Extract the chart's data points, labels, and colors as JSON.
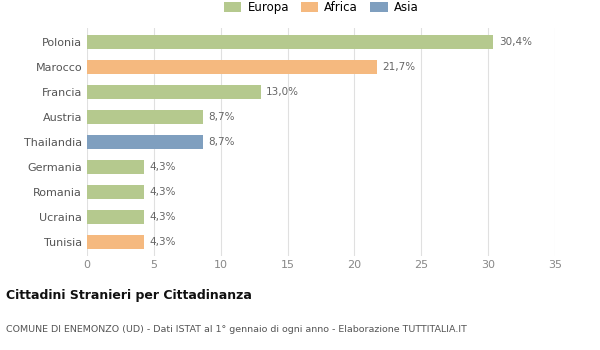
{
  "categories": [
    "Polonia",
    "Marocco",
    "Francia",
    "Austria",
    "Thailandia",
    "Germania",
    "Romania",
    "Ucraina",
    "Tunisia"
  ],
  "values": [
    30.4,
    21.7,
    13.0,
    8.7,
    8.7,
    4.3,
    4.3,
    4.3,
    4.3
  ],
  "labels": [
    "30,4%",
    "21,7%",
    "13,0%",
    "8,7%",
    "8,7%",
    "4,3%",
    "4,3%",
    "4,3%",
    "4,3%"
  ],
  "colors": [
    "#b5c98e",
    "#f5b97f",
    "#b5c98e",
    "#b5c98e",
    "#7f9fbf",
    "#b5c98e",
    "#b5c98e",
    "#b5c98e",
    "#f5b97f"
  ],
  "legend_labels": [
    "Europa",
    "Africa",
    "Asia"
  ],
  "legend_colors": [
    "#b5c98e",
    "#f5b97f",
    "#7f9fbf"
  ],
  "xlim": [
    0,
    35
  ],
  "xticks": [
    0,
    5,
    10,
    15,
    20,
    25,
    30,
    35
  ],
  "title": "Cittadini Stranieri per Cittadinanza",
  "subtitle": "COMUNE DI ENEMONZO (UD) - Dati ISTAT al 1° gennaio di ogni anno - Elaborazione TUTTITALIA.IT",
  "background_color": "#ffffff",
  "grid_color": "#e0e0e0"
}
